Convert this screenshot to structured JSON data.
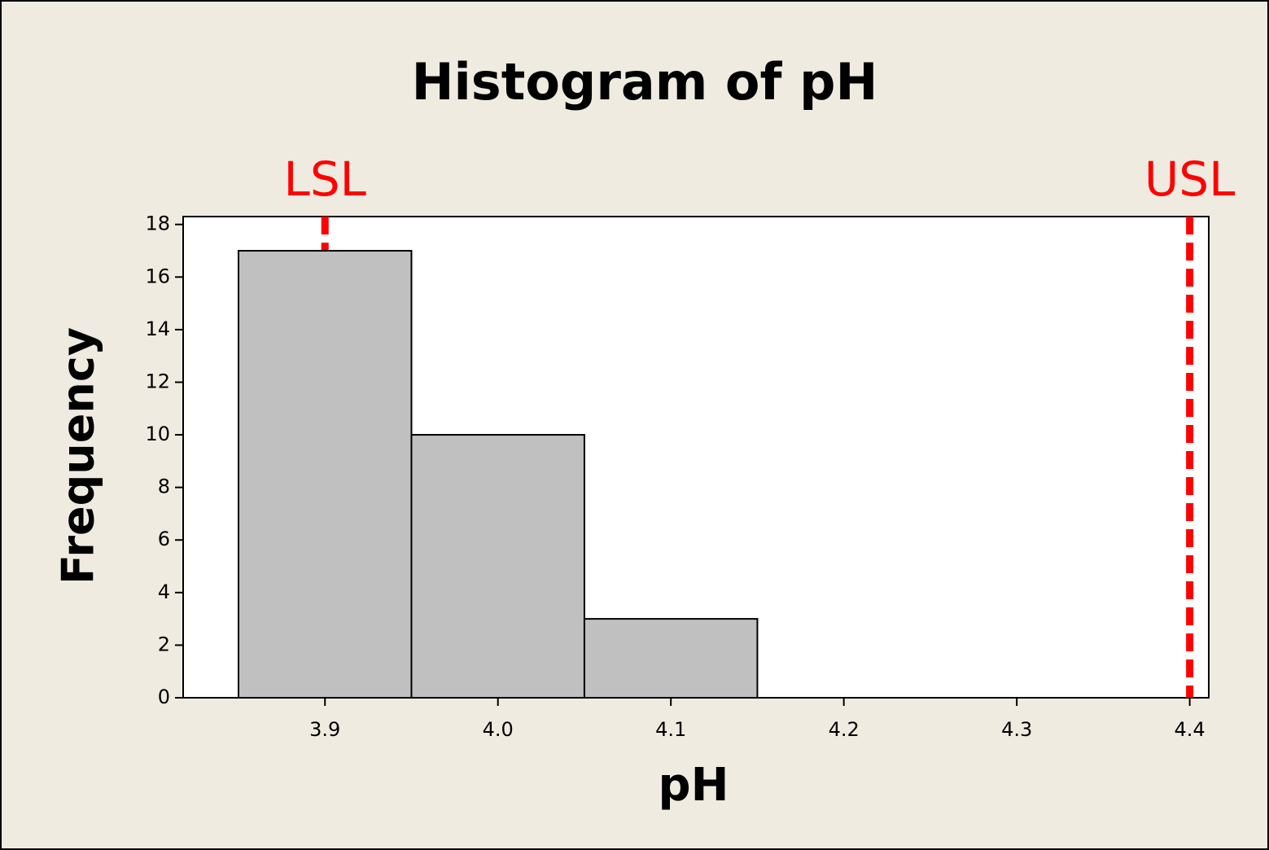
{
  "chart_data": {
    "type": "histogram",
    "title": "Histogram of pH",
    "xlabel": "pH",
    "ylabel": "Frequency",
    "bins": [
      3.85,
      3.95,
      4.05,
      4.15
    ],
    "counts": [
      17,
      10,
      3
    ],
    "color": "#c0c0c0",
    "xlim": [
      3.818,
      4.411
    ],
    "xticks": [
      3.9,
      {
        "value": 4,
        "label": "4.0"
      },
      4.1,
      4.2,
      4.3,
      4.4
    ],
    "ylim": [
      0,
      18.3
    ],
    "yticks": [
      0,
      2,
      4,
      6,
      8,
      10,
      12,
      14,
      16,
      18
    ],
    "spec_limits": [
      {
        "label": "LSL",
        "value": 3.9
      },
      {
        "label": "USL",
        "value": 4.4
      }
    ],
    "spec_color": "#ff0000"
  }
}
